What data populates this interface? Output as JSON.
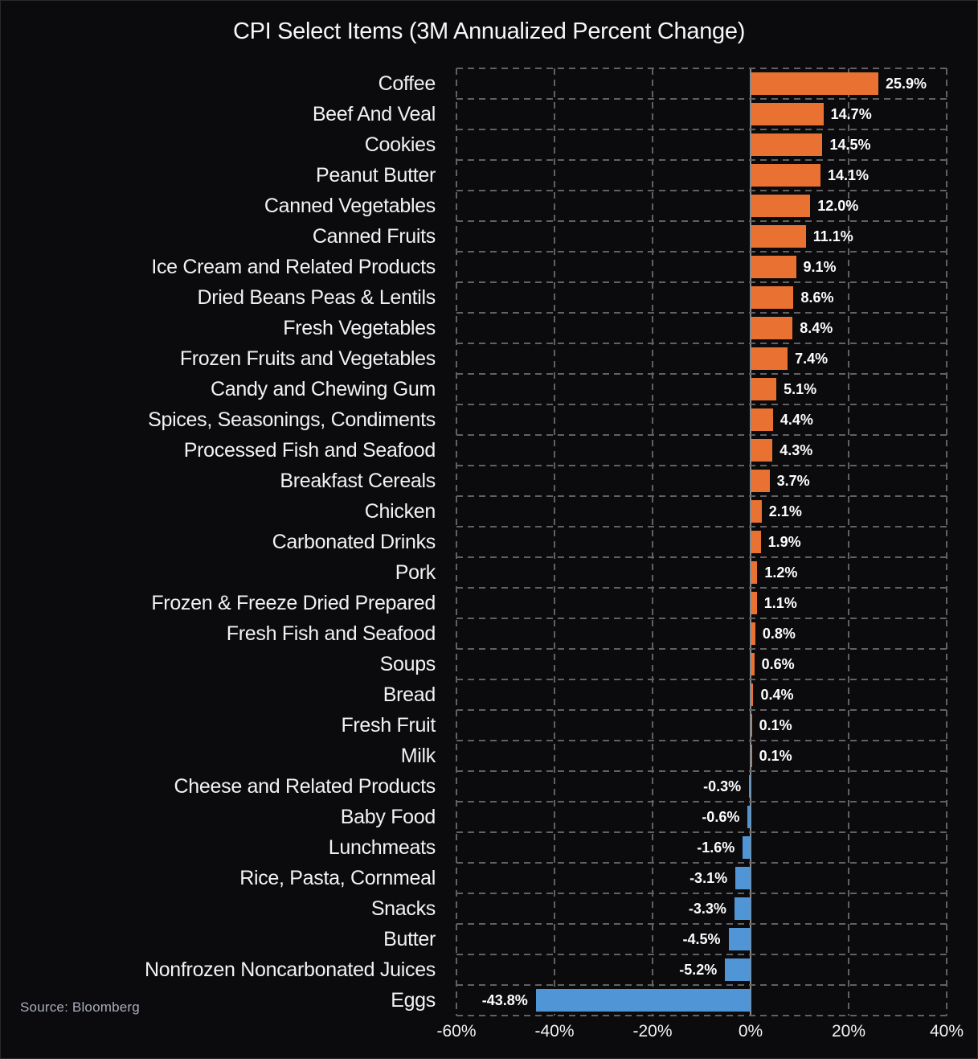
{
  "title": "CPI Select Items (3M Annualized Percent Change)",
  "source_note": "Source: Bloomberg",
  "colors": {
    "background": "#0b0b0d",
    "positive_bar": "#E97132",
    "negative_bar": "#5096D6",
    "gridline": "#616161",
    "zero_line": "#8a8a8a",
    "text": "#f2f2f2",
    "source_text": "#a9aebc"
  },
  "chart_data": {
    "type": "bar",
    "orientation": "horizontal",
    "title": "CPI Select Items (3M Annualized Percent Change)",
    "xlabel": "",
    "ylabel": "",
    "xlim": [
      -60,
      40
    ],
    "grid": "dashed",
    "legend": "none",
    "x_ticks": [
      {
        "label": "-60%",
        "value": -60
      },
      {
        "label": "-40%",
        "value": -40
      },
      {
        "label": "-20%",
        "value": -20
      },
      {
        "label": "0%",
        "value": 0
      },
      {
        "label": "20%",
        "value": 20
      },
      {
        "label": "40%",
        "value": 40
      }
    ],
    "categories": [
      "Coffee",
      "Beef And Veal",
      "Cookies",
      "Peanut Butter",
      "Canned Vegetables",
      "Canned Fruits",
      "Ice Cream and Related Products",
      "Dried Beans Peas & Lentils",
      "Fresh Vegetables",
      "Frozen Fruits and Vegetables",
      "Candy and Chewing Gum",
      "Spices, Seasonings, Condiments",
      "Processed Fish and Seafood",
      "Breakfast Cereals",
      "Chicken",
      "Carbonated Drinks",
      "Pork",
      "Frozen & Freeze Dried Prepared",
      "Fresh Fish and Seafood",
      "Soups",
      "Bread",
      "Fresh Fruit",
      "Milk",
      "Cheese and Related Products",
      "Baby Food",
      "Lunchmeats",
      "Rice, Pasta, Cornmeal",
      "Snacks",
      "Butter",
      "Nonfrozen Noncarbonated Juices",
      "Eggs"
    ],
    "values": [
      25.9,
      14.7,
      14.5,
      14.1,
      12.0,
      11.1,
      9.1,
      8.6,
      8.4,
      7.4,
      5.1,
      4.4,
      4.3,
      3.7,
      2.1,
      1.9,
      1.2,
      1.1,
      0.8,
      0.6,
      0.4,
      0.1,
      0.1,
      -0.3,
      -0.6,
      -1.6,
      -3.1,
      -3.3,
      -4.5,
      -5.2,
      -43.8
    ],
    "value_labels": [
      "25.9%",
      "14.7%",
      "14.5%",
      "14.1%",
      "12.0%",
      "11.1%",
      "9.1%",
      "8.6%",
      "8.4%",
      "7.4%",
      "5.1%",
      "4.4%",
      "4.3%",
      "3.7%",
      "2.1%",
      "1.9%",
      "1.2%",
      "1.1%",
      "0.8%",
      "0.6%",
      "0.4%",
      "0.1%",
      "0.1%",
      "-0.3%",
      "-0.6%",
      "-1.6%",
      "-3.1%",
      "-3.3%",
      "-4.5%",
      "-5.2%",
      "-43.8%"
    ]
  }
}
